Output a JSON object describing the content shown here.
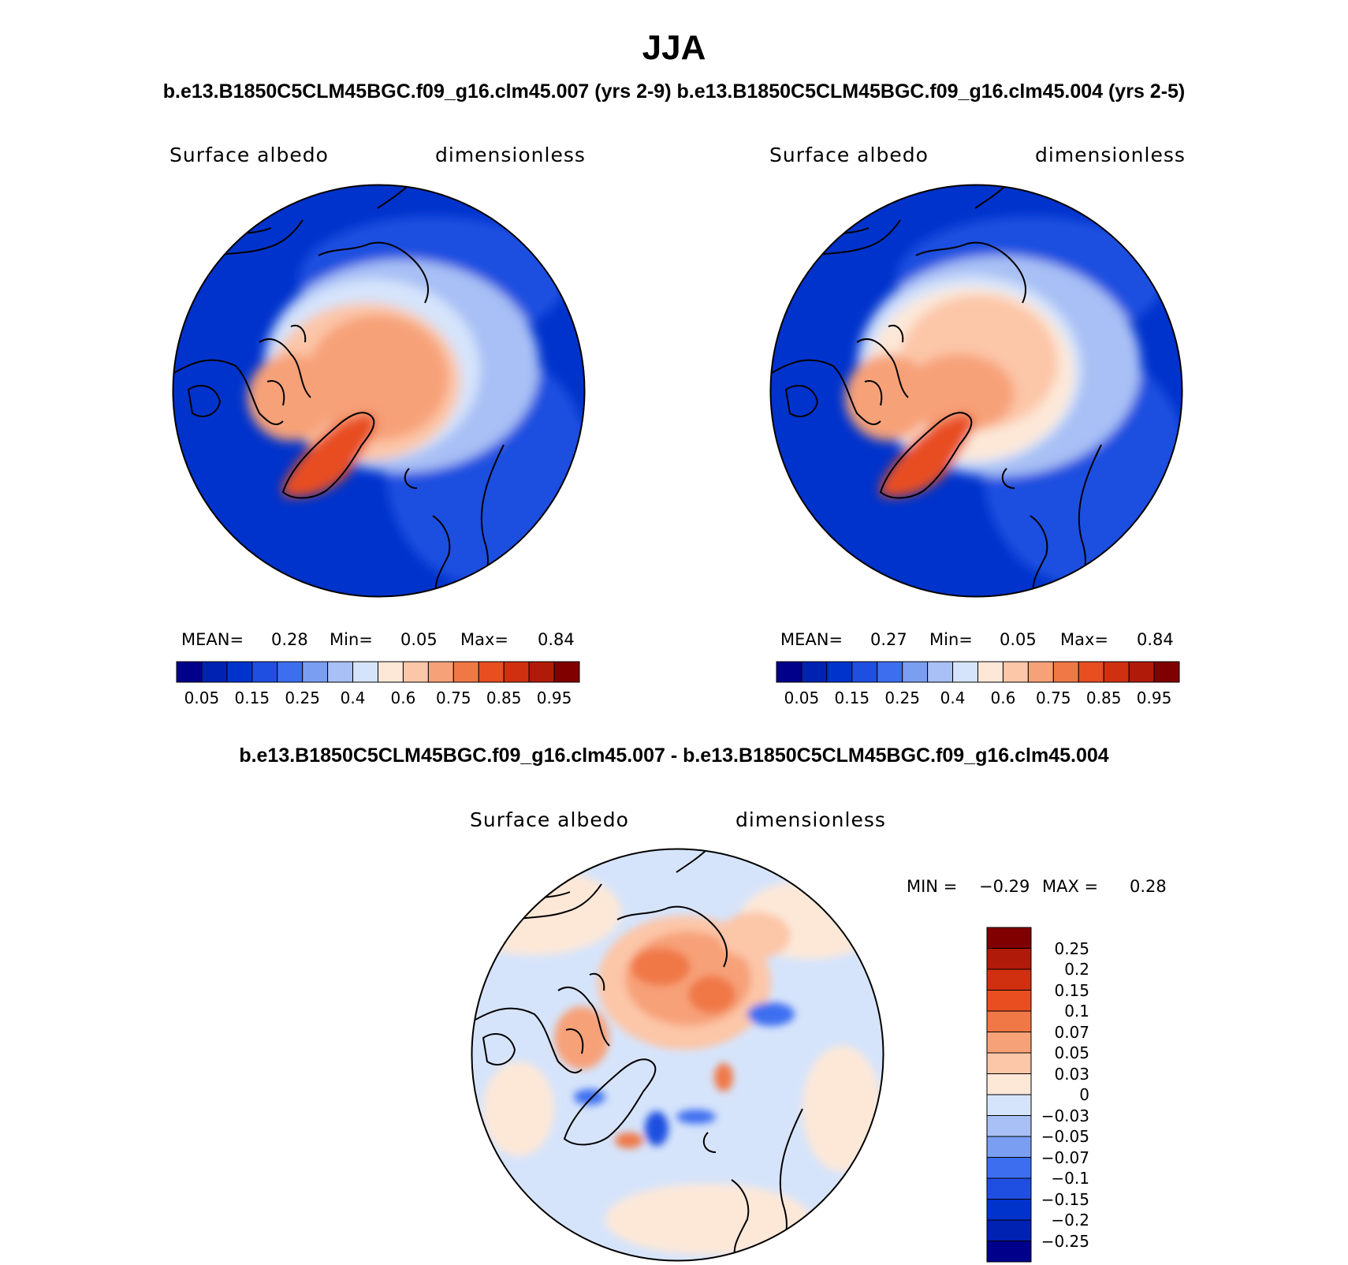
{
  "page": {
    "title": "JJA",
    "subtitle_top": "b.e13.B1850C5CLM45BGC.f09_g16.clm45.007 (yrs 2-9) b.e13.B1850C5CLM45BGC.f09_g16.clm45.004 (yrs 2-5)",
    "subtitle_bottom": "b.e13.B1850C5CLM45BGC.f09_g16.clm45.007 - b.e13.B1850C5CLM45BGC.f09_g16.clm45.004"
  },
  "colors": {
    "main_scale": [
      "#00008b",
      "#0022b2",
      "#0033cc",
      "#1f4fe0",
      "#3d6ef0",
      "#7a9ef2",
      "#a8c0f5",
      "#d6e4fb",
      "#fde8d8",
      "#fcc6a8",
      "#f7a178",
      "#f07846",
      "#e84e20",
      "#d03010",
      "#b01a08",
      "#800000"
    ],
    "diff_scale": [
      "#00008b",
      "#0022b2",
      "#0033cc",
      "#1f4fe0",
      "#3d6ef0",
      "#7a9ef2",
      "#a8c0f5",
      "#d6e4fb",
      "#fde8d8",
      "#fcc6a8",
      "#f7a178",
      "#f07846",
      "#e84e20",
      "#d03010",
      "#b01a08",
      "#800000"
    ]
  },
  "panels": [
    {
      "field": "Surface albedo",
      "units": "dimensionless",
      "mean_label": "MEAN=",
      "mean_value": "0.28",
      "min_label": "Min=",
      "min_value": "0.05",
      "max_label": "Max=",
      "max_value": "0.84"
    },
    {
      "field": "Surface albedo",
      "units": "dimensionless",
      "mean_label": "MEAN=",
      "mean_value": "0.27",
      "min_label": "Min=",
      "min_value": "0.05",
      "max_label": "Max=",
      "max_value": "0.84"
    }
  ],
  "main_ticks": [
    "0.05",
    "0.15",
    "0.25",
    "0.4",
    "0.6",
    "0.75",
    "0.85",
    "0.95"
  ],
  "diff_panel": {
    "field": "Surface albedo",
    "units": "dimensionless",
    "min_label": "MIN =",
    "min_value": "−0.29",
    "max_label": "MAX =",
    "max_value": "0.28",
    "ticks": [
      "0.25",
      "0.2",
      "0.15",
      "0.1",
      "0.07",
      "0.05",
      "0.03",
      "0",
      "−0.03",
      "−0.05",
      "−0.07",
      "−0.1",
      "−0.15",
      "−0.2",
      "−0.25"
    ]
  }
}
